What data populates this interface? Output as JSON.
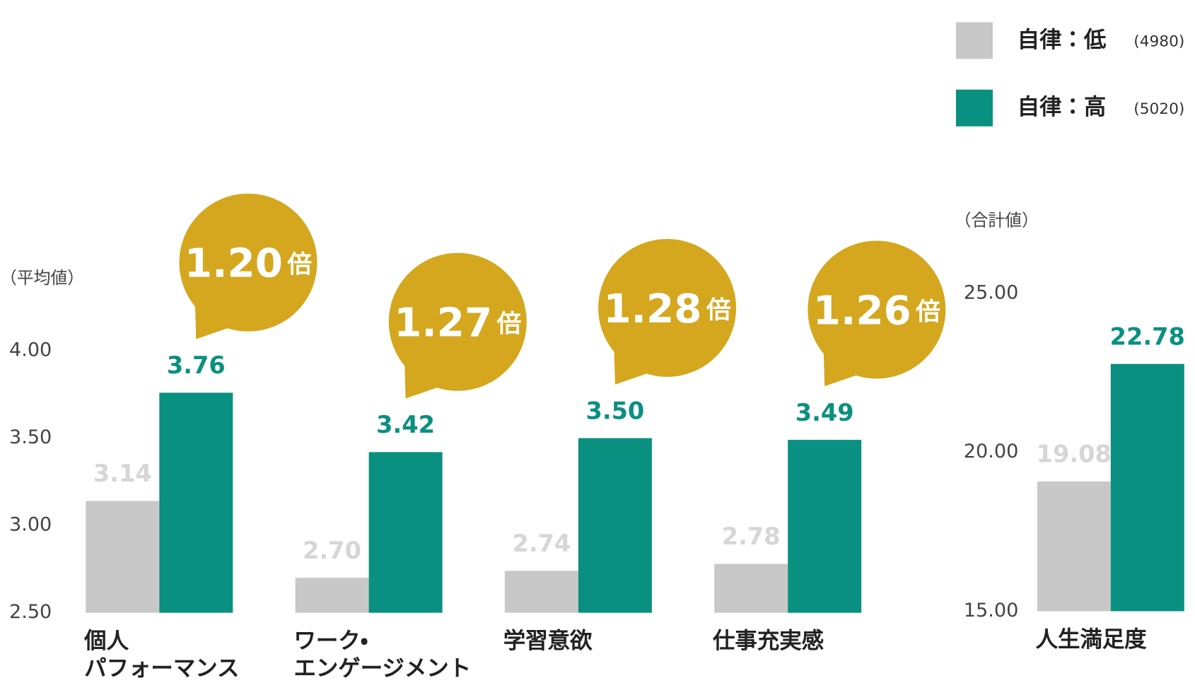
{
  "chart_data": [
    {
      "type": "bar",
      "y_label": "（平均値）",
      "categories": [
        "個人\nパフォーマンス",
        "ワーク・\nエンゲージメント",
        "学習意欲",
        "仕事充実感"
      ],
      "series": [
        {
          "name": "自律：低",
          "sample": "(4980)",
          "color": "#c8c8c8",
          "label_color": "#d6d6d6",
          "values": [
            3.14,
            2.7,
            2.74,
            2.78
          ],
          "value_labels": [
            "3.14",
            "2.70",
            "2.74",
            "2.78"
          ]
        },
        {
          "name": "自律：高",
          "sample": "(5020)",
          "color": "#0a9080",
          "label_color": "#0a9080",
          "values": [
            3.76,
            3.42,
            3.5,
            3.49
          ],
          "value_labels": [
            "3.76",
            "3.42",
            "3.50",
            "3.49"
          ]
        }
      ],
      "ylim": [
        2.5,
        4.0
      ],
      "yticks": [
        {
          "value": 2.5,
          "label": "2.50"
        },
        {
          "value": 3.0,
          "label": "3.00"
        },
        {
          "value": 3.5,
          "label": "3.50"
        },
        {
          "value": 4.0,
          "label": "4.00"
        }
      ],
      "ratio_labels": [
        "1.20",
        "1.27",
        "1.28",
        "1.26"
      ],
      "ratio_unit": "倍",
      "ratio_color": "#d4a71e"
    },
    {
      "type": "bar",
      "y_label": "（合計値）",
      "categories": [
        "人生満足度"
      ],
      "series": [
        {
          "color": "#c8c8c8",
          "label_color": "#d6d6d6",
          "values": [
            19.08
          ]
        },
        {
          "color": "#0a9080",
          "label_color": "#0a9080",
          "values": [
            22.78
          ]
        }
      ],
      "ylim": [
        15,
        25
      ],
      "yticks": [
        {
          "value": 15,
          "label": "15.00"
        },
        {
          "value": 20,
          "label": "20.00"
        },
        {
          "value": 25,
          "label": "25.00"
        }
      ]
    }
  ]
}
